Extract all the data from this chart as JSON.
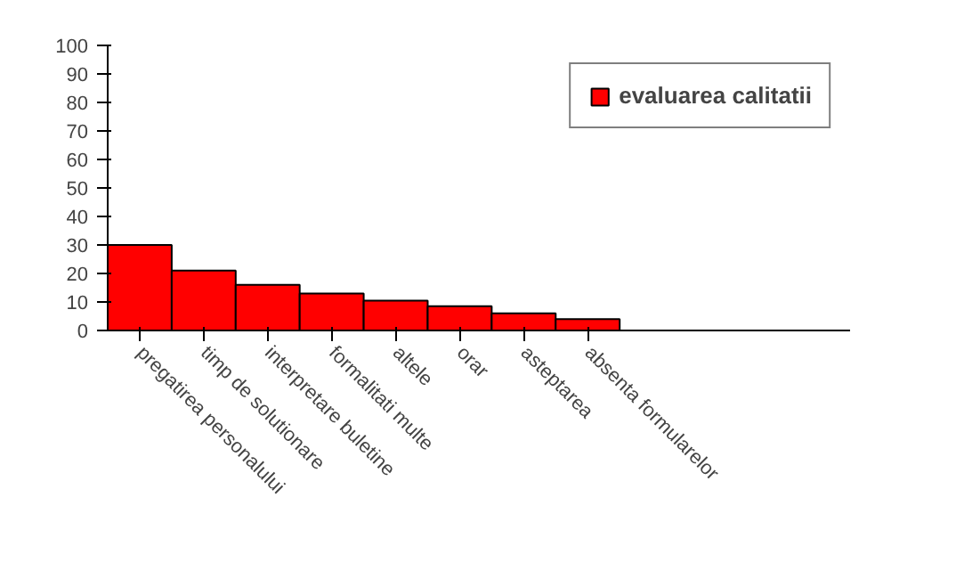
{
  "chart_data": {
    "type": "bar",
    "categories": [
      "pregatirea personalului",
      "timp de solutionare",
      "interpretare buletine",
      "formalitati multe",
      "altele",
      "orar",
      "asteptarea",
      "absenta formularelor"
    ],
    "series": [
      {
        "name": "evaluarea calitatii",
        "color": "#ff0000",
        "values": [
          30,
          21,
          16,
          13,
          10.5,
          8.5,
          6,
          4
        ]
      }
    ],
    "ylim": [
      0,
      100
    ],
    "yticks": [
      0,
      10,
      20,
      30,
      40,
      50,
      60,
      70,
      80,
      90,
      100
    ],
    "grid": false,
    "legend": "top right"
  }
}
